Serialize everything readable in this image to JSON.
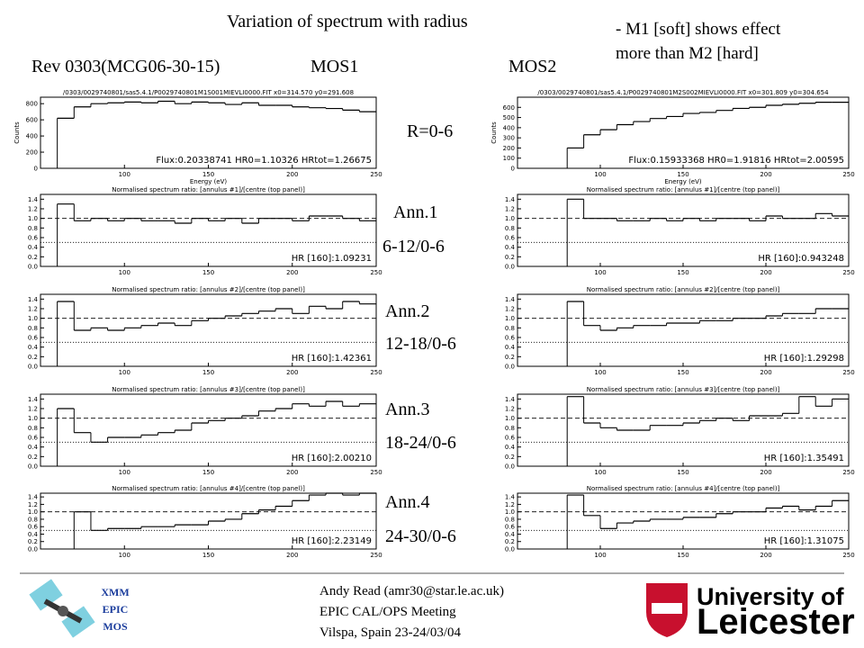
{
  "title": "Variation of spectrum with radius",
  "note": [
    "- M1 [soft] shows effect",
    "more than M2 [hard]"
  ],
  "rev": "Rev 0303(MCG06-30-15)",
  "row_labels": [
    {
      "name": "R=0-6"
    },
    {
      "name": "Ann.1",
      "ratio": "6-12/0-6"
    },
    {
      "name": "Ann.2",
      "ratio": "12-18/0-6"
    },
    {
      "name": "Ann.3",
      "ratio": "18-24/0-6"
    },
    {
      "name": "Ann.4",
      "ratio": "24-30/0-6"
    }
  ],
  "columns": [
    {
      "label": "MOS1",
      "panels": [
        {
          "header": "/0303/0029740801/sas5.4.1/P0029740801M1S001MIEVLI0000.FIT  x0=314.570  y0=291.608",
          "annotation": "Flux:0.20338741  HR0=1.10326  HRtot=1.26675",
          "xlabel": "Energy (eV)",
          "ylabel": "Counts",
          "xlim": [
            50,
            250
          ],
          "ylim": [
            0,
            880
          ],
          "xticks": [
            100,
            150,
            200,
            250
          ],
          "yticks": [
            0,
            200,
            400,
            600,
            800
          ],
          "bins": [
            60,
            70,
            80,
            90,
            100,
            110,
            120,
            130,
            140,
            150,
            160,
            170,
            180,
            190,
            200,
            210,
            220,
            230,
            240,
            250
          ],
          "values": [
            620,
            760,
            800,
            810,
            820,
            810,
            830,
            800,
            820,
            810,
            790,
            810,
            780,
            780,
            760,
            750,
            740,
            720,
            700
          ]
        },
        {
          "header": "Normalised spectrum ratio: [annulus #1]/[centre (top panel)]",
          "annotation": "HR [160]:1.09231",
          "xlim": [
            50,
            250
          ],
          "ylim": [
            0,
            1.5
          ],
          "xticks": [
            100,
            150,
            200,
            250
          ],
          "yticks": [
            {
              "value": 0,
              "label": "0.0"
            },
            {
              "value": 0.2,
              "label": "0.2"
            },
            {
              "value": 0.4,
              "label": "0.4"
            },
            {
              "value": 0.6,
              "label": "0.6"
            },
            {
              "value": 0.8,
              "label": "0.8"
            },
            {
              "value": 1,
              "label": "1.0"
            },
            {
              "value": 1.2,
              "label": "1.2"
            },
            {
              "value": 1.4,
              "label": "1.4"
            }
          ],
          "ref_lines": [
            {
              "value": 1,
              "style": "dashed"
            },
            {
              "value": 0.5,
              "style": "dotted"
            }
          ],
          "bins": [
            60,
            70,
            80,
            90,
            100,
            110,
            120,
            130,
            140,
            150,
            160,
            170,
            180,
            190,
            200,
            210,
            220,
            230,
            240,
            250
          ],
          "values": [
            1.3,
            0.95,
            1,
            0.95,
            1,
            0.95,
            0.95,
            0.9,
            1,
            0.95,
            1,
            0.9,
            1,
            1,
            0.95,
            1.05,
            1.05,
            1,
            0.95
          ]
        },
        {
          "header": "Normalised spectrum ratio: [annulus #2]/[centre (top panel)]",
          "annotation": "HR [160]:1.42361",
          "xlim": [
            50,
            250
          ],
          "ylim": [
            0,
            1.5
          ],
          "xticks": [
            100,
            150,
            200,
            250
          ],
          "yticks": [
            {
              "value": 0,
              "label": "0.0"
            },
            {
              "value": 0.2,
              "label": "0.2"
            },
            {
              "value": 0.4,
              "label": "0.4"
            },
            {
              "value": 0.6,
              "label": "0.6"
            },
            {
              "value": 0.8,
              "label": "0.8"
            },
            {
              "value": 1,
              "label": "1.0"
            },
            {
              "value": 1.2,
              "label": "1.2"
            },
            {
              "value": 1.4,
              "label": "1.4"
            }
          ],
          "ref_lines": [
            {
              "value": 1,
              "style": "dashed"
            },
            {
              "value": 0.5,
              "style": "dotted"
            }
          ],
          "bins": [
            60,
            70,
            80,
            90,
            100,
            110,
            120,
            130,
            140,
            150,
            160,
            170,
            180,
            190,
            200,
            210,
            220,
            230,
            240,
            250
          ],
          "values": [
            1.35,
            0.75,
            0.8,
            0.75,
            0.8,
            0.85,
            0.9,
            0.85,
            0.95,
            1,
            1.05,
            1.1,
            1.15,
            1.2,
            1.1,
            1.25,
            1.2,
            1.35,
            1.3
          ]
        },
        {
          "header": "Normalised spectrum ratio: [annulus #3]/[centre (top panel)]",
          "annotation": "HR [160]:2.00210",
          "xlim": [
            50,
            250
          ],
          "ylim": [
            0,
            1.5
          ],
          "xticks": [
            100,
            150,
            200,
            250
          ],
          "yticks": [
            {
              "value": 0,
              "label": "0.0"
            },
            {
              "value": 0.2,
              "label": "0.2"
            },
            {
              "value": 0.4,
              "label": "0.4"
            },
            {
              "value": 0.6,
              "label": "0.6"
            },
            {
              "value": 0.8,
              "label": "0.8"
            },
            {
              "value": 1,
              "label": "1.0"
            },
            {
              "value": 1.2,
              "label": "1.2"
            },
            {
              "value": 1.4,
              "label": "1.4"
            }
          ],
          "ref_lines": [
            {
              "value": 1,
              "style": "dashed"
            },
            {
              "value": 0.5,
              "style": "dotted"
            }
          ],
          "bins": [
            60,
            70,
            80,
            90,
            100,
            110,
            120,
            130,
            140,
            150,
            160,
            170,
            180,
            190,
            200,
            210,
            220,
            230,
            240,
            250
          ],
          "values": [
            1.2,
            0.7,
            0.5,
            0.6,
            0.6,
            0.65,
            0.7,
            0.75,
            0.9,
            0.95,
            1,
            1.05,
            1.15,
            1.2,
            1.3,
            1.25,
            1.35,
            1.25,
            1.3
          ]
        },
        {
          "header": "Normalised spectrum ratio: [annulus #4]/[centre (top panel)]",
          "annotation": "HR [160]:2.23149",
          "xlim": [
            50,
            250
          ],
          "ylim": [
            0,
            1.5
          ],
          "xticks": [
            100,
            150,
            200,
            250
          ],
          "yticks": [
            {
              "value": 0,
              "label": "0.0"
            },
            {
              "value": 0.2,
              "label": "0.2"
            },
            {
              "value": 0.4,
              "label": "0.4"
            },
            {
              "value": 0.6,
              "label": "0.6"
            },
            {
              "value": 0.8,
              "label": "0.8"
            },
            {
              "value": 1,
              "label": "1.0"
            },
            {
              "value": 1.2,
              "label": "1.2"
            },
            {
              "value": 1.4,
              "label": "1.4"
            }
          ],
          "ref_lines": [
            {
              "value": 1,
              "style": "dashed"
            },
            {
              "value": 0.5,
              "style": "dotted"
            }
          ],
          "bins": [
            70,
            80,
            90,
            100,
            110,
            120,
            130,
            140,
            150,
            160,
            170,
            180,
            190,
            200,
            210,
            220,
            230,
            240,
            250
          ],
          "values": [
            1,
            0.5,
            0.55,
            0.55,
            0.6,
            0.6,
            0.65,
            0.65,
            0.75,
            0.8,
            0.95,
            1.05,
            1.15,
            1.3,
            1.45,
            1.5,
            1.45,
            1.5
          ]
        }
      ]
    },
    {
      "label": "MOS2",
      "panels": [
        {
          "header": "/0303/0029740801/sas5.4.1/P0029740801M2S002MIEVLI0000.FIT  x0=301.809  y0=304.654",
          "annotation": "Flux:0.15933368  HR0=1.91816  HRtot=2.00595",
          "xlabel": "Energy (eV)",
          "ylabel": "Counts",
          "xlim": [
            50,
            250
          ],
          "ylim": [
            0,
            700
          ],
          "xticks": [
            100,
            150,
            200,
            250
          ],
          "yticks": [
            0,
            100,
            200,
            300,
            400,
            500,
            600
          ],
          "bins": [
            80,
            90,
            100,
            110,
            120,
            130,
            140,
            150,
            160,
            170,
            180,
            190,
            200,
            210,
            220,
            230,
            240,
            250
          ],
          "values": [
            200,
            330,
            380,
            430,
            460,
            490,
            510,
            540,
            550,
            570,
            590,
            600,
            620,
            630,
            640,
            650,
            650
          ]
        },
        {
          "header": "Normalised spectrum ratio: [annulus #1]/[centre (top panel)]",
          "annotation": "HR [160]:0.943248",
          "xlim": [
            50,
            250
          ],
          "ylim": [
            0,
            1.5
          ],
          "xticks": [
            100,
            150,
            200,
            250
          ],
          "yticks": [
            {
              "value": 0,
              "label": "0.0"
            },
            {
              "value": 0.2,
              "label": "0.2"
            },
            {
              "value": 0.4,
              "label": "0.4"
            },
            {
              "value": 0.6,
              "label": "0.6"
            },
            {
              "value": 0.8,
              "label": "0.8"
            },
            {
              "value": 1,
              "label": "1.0"
            },
            {
              "value": 1.2,
              "label": "1.2"
            },
            {
              "value": 1.4,
              "label": "1.4"
            }
          ],
          "ref_lines": [
            {
              "value": 1,
              "style": "dashed"
            },
            {
              "value": 0.5,
              "style": "dotted"
            }
          ],
          "bins": [
            80,
            90,
            100,
            110,
            120,
            130,
            140,
            150,
            160,
            170,
            180,
            190,
            200,
            210,
            220,
            230,
            240,
            250
          ],
          "values": [
            1.4,
            1,
            1,
            0.95,
            0.95,
            1,
            0.95,
            1,
            0.95,
            1,
            1,
            0.95,
            1.05,
            1,
            1,
            1.1,
            1.05
          ]
        },
        {
          "header": "Normalised spectrum ratio: [annulus #2]/[centre (top panel)]",
          "annotation": "HR [160]:1.29298",
          "xlim": [
            50,
            250
          ],
          "ylim": [
            0,
            1.5
          ],
          "xticks": [
            100,
            150,
            200,
            250
          ],
          "yticks": [
            {
              "value": 0,
              "label": "0.0"
            },
            {
              "value": 0.2,
              "label": "0.2"
            },
            {
              "value": 0.4,
              "label": "0.4"
            },
            {
              "value": 0.6,
              "label": "0.6"
            },
            {
              "value": 0.8,
              "label": "0.8"
            },
            {
              "value": 1,
              "label": "1.0"
            },
            {
              "value": 1.2,
              "label": "1.2"
            },
            {
              "value": 1.4,
              "label": "1.4"
            }
          ],
          "ref_lines": [
            {
              "value": 1,
              "style": "dashed"
            },
            {
              "value": 0.5,
              "style": "dotted"
            }
          ],
          "bins": [
            80,
            90,
            100,
            110,
            120,
            130,
            140,
            150,
            160,
            170,
            180,
            190,
            200,
            210,
            220,
            230,
            240,
            250
          ],
          "values": [
            1.35,
            0.85,
            0.75,
            0.8,
            0.85,
            0.85,
            0.9,
            0.9,
            0.95,
            0.95,
            1,
            1,
            1.05,
            1.1,
            1.1,
            1.2,
            1.2
          ]
        },
        {
          "header": "Normalised spectrum ratio: [annulus #3]/[centre (top panel)]",
          "annotation": "HR [160]:1.35491",
          "xlim": [
            50,
            250
          ],
          "ylim": [
            0,
            1.5
          ],
          "xticks": [
            100,
            150,
            200,
            250
          ],
          "yticks": [
            {
              "value": 0,
              "label": "0.0"
            },
            {
              "value": 0.2,
              "label": "0.2"
            },
            {
              "value": 0.4,
              "label": "0.4"
            },
            {
              "value": 0.6,
              "label": "0.6"
            },
            {
              "value": 0.8,
              "label": "0.8"
            },
            {
              "value": 1,
              "label": "1.0"
            },
            {
              "value": 1.2,
              "label": "1.2"
            },
            {
              "value": 1.4,
              "label": "1.4"
            }
          ],
          "ref_lines": [
            {
              "value": 1,
              "style": "dashed"
            },
            {
              "value": 0.5,
              "style": "dotted"
            }
          ],
          "bins": [
            80,
            90,
            100,
            110,
            120,
            130,
            140,
            150,
            160,
            170,
            180,
            190,
            200,
            210,
            220,
            230,
            240,
            250
          ],
          "values": [
            1.45,
            0.9,
            0.8,
            0.75,
            0.75,
            0.85,
            0.85,
            0.9,
            0.95,
            1,
            0.95,
            1.05,
            1.05,
            1.1,
            1.45,
            1.25,
            1.4
          ]
        },
        {
          "header": "Normalised spectrum ratio: [annulus #4]/[centre (top panel)]",
          "annotation": "HR [160]:1.31075",
          "xlim": [
            50,
            250
          ],
          "ylim": [
            0,
            1.5
          ],
          "xticks": [
            100,
            150,
            200,
            250
          ],
          "yticks": [
            {
              "value": 0,
              "label": "0.0"
            },
            {
              "value": 0.2,
              "label": "0.2"
            },
            {
              "value": 0.4,
              "label": "0.4"
            },
            {
              "value": 0.6,
              "label": "0.6"
            },
            {
              "value": 0.8,
              "label": "0.8"
            },
            {
              "value": 1,
              "label": "1.0"
            },
            {
              "value": 1.2,
              "label": "1.2"
            },
            {
              "value": 1.4,
              "label": "1.4"
            }
          ],
          "ref_lines": [
            {
              "value": 1,
              "style": "dashed"
            },
            {
              "value": 0.5,
              "style": "dotted"
            }
          ],
          "bins": [
            80,
            90,
            100,
            110,
            120,
            130,
            140,
            150,
            160,
            170,
            180,
            190,
            200,
            210,
            220,
            230,
            240,
            250
          ],
          "values": [
            1.45,
            0.9,
            0.55,
            0.7,
            0.75,
            0.8,
            0.8,
            0.85,
            0.85,
            0.95,
            1,
            1,
            1.1,
            1.15,
            1.05,
            1.15,
            1.3
          ]
        }
      ]
    }
  ],
  "footer": {
    "logo": [
      "XMM",
      "EPIC",
      "MOS"
    ],
    "lines": [
      "Andy Read (amr30@star.le.ac.uk)",
      "EPIC CAL/OPS Meeting",
      "Vilspa, Spain 23-24/03/04"
    ],
    "university": [
      "University of",
      "Leicester"
    ]
  }
}
